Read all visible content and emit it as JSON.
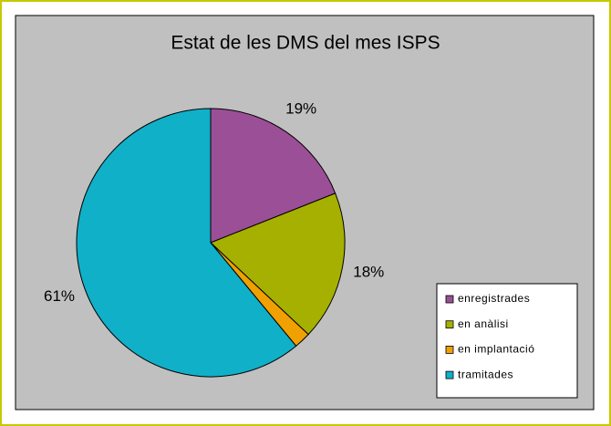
{
  "chart_data": {
    "type": "pie",
    "title": "Estat de les DMS del mes ISPS",
    "categories": [
      "enregistrades",
      "en anàlisi",
      "en implantació",
      "tramitades"
    ],
    "values": [
      19,
      18,
      2,
      61
    ],
    "value_labels": [
      "19%",
      "18%",
      null,
      "61%"
    ],
    "colors": [
      "#9b4f96",
      "#a6b000",
      "#f0a000",
      "#10b0c8"
    ],
    "legend": "right"
  }
}
